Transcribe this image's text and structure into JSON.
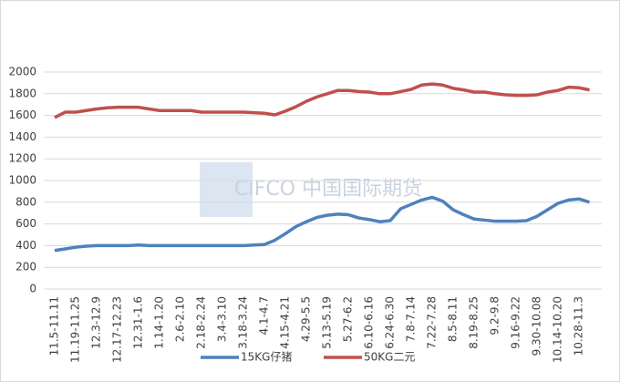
{
  "chart_data": {
    "type": "line",
    "watermark": "CIFCO 中国国际期货",
    "categories": [
      "11.5-11.11",
      null,
      "11.19-11.25",
      null,
      "12.3-12.9",
      null,
      "12.17-12.23",
      null,
      "12.31-1.6",
      null,
      "1.14-1.20",
      null,
      "2.6-2.10",
      null,
      "2.18-2.24",
      null,
      "3.4-3.10",
      null,
      "3.18-3.24",
      null,
      "4.1-4.7",
      null,
      "4.15-4.21",
      null,
      "4.29-5.5",
      null,
      "5.13-5.19",
      null,
      "5.27-6.2",
      null,
      "6.10-6.16",
      null,
      "6.24-6.30",
      null,
      "7.8-7.14",
      null,
      "7.22-7.28",
      null,
      "8.5-8.11",
      null,
      "8.19-8.25",
      null,
      "9.2-9.8",
      null,
      "9.16-9.22",
      null,
      "9.30-10.08",
      null,
      "10.14-10.20",
      null,
      "10.28-11.3",
      null
    ],
    "series": [
      {
        "name": "15KG仔猪",
        "color": "#4f81bd",
        "values": [
          355,
          370,
          385,
          395,
          400,
          400,
          400,
          400,
          405,
          400,
          400,
          400,
          400,
          400,
          400,
          400,
          400,
          400,
          400,
          405,
          410,
          450,
          510,
          575,
          620,
          660,
          680,
          690,
          685,
          655,
          640,
          620,
          630,
          740,
          780,
          820,
          845,
          810,
          730,
          685,
          645,
          635,
          625,
          625,
          625,
          630,
          670,
          730,
          790,
          820,
          830,
          800
        ]
      },
      {
        "name": "50KG二元",
        "color": "#c0504d",
        "values": [
          1580,
          1630,
          1630,
          1645,
          1660,
          1670,
          1675,
          1675,
          1675,
          1660,
          1645,
          1645,
          1645,
          1645,
          1630,
          1630,
          1630,
          1630,
          1630,
          1625,
          1620,
          1605,
          1640,
          1680,
          1730,
          1770,
          1800,
          1830,
          1830,
          1820,
          1815,
          1800,
          1800,
          1820,
          1840,
          1880,
          1890,
          1880,
          1850,
          1835,
          1815,
          1815,
          1800,
          1790,
          1785,
          1785,
          1790,
          1815,
          1830,
          1860,
          1855,
          1835
        ]
      }
    ],
    "ylim": [
      0,
      2000
    ],
    "yticks": [
      0,
      200,
      400,
      600,
      800,
      1000,
      1200,
      1400,
      1600,
      1800,
      2000
    ],
    "grid": true,
    "legend": "bottom"
  }
}
